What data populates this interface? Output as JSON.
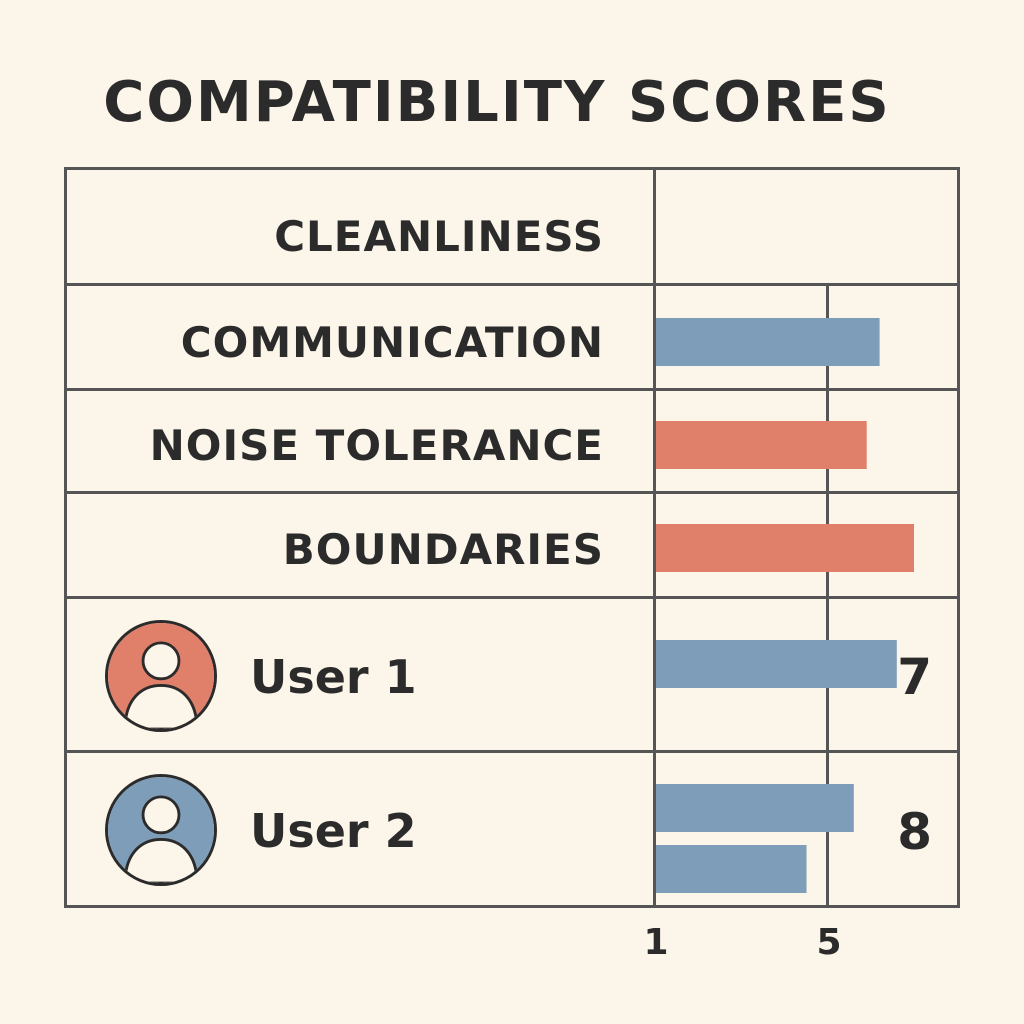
{
  "chart_data": {
    "type": "bar",
    "title": "COMPATIBILITY SCORES",
    "categories": [
      "CLEANLINESS",
      "COMMUNICATION",
      "NOISE TOLERANCE",
      "BOUNDARIES",
      "User 1",
      "User 2"
    ],
    "series": [
      {
        "values": [
          null,
          6.2,
          5.9,
          7.0,
          6.6,
          5.6
        ]
      },
      {
        "values": [
          null,
          null,
          null,
          null,
          null,
          4.5
        ]
      }
    ],
    "bar_colors": [
      "#e0806a",
      "#7e9db9",
      "#e0806a",
      "#e0806a",
      "#7e9db9",
      "#7e9db9"
    ],
    "scores": {
      "user1": "7",
      "user2": "8"
    },
    "x_ticks": [
      "1",
      "5"
    ],
    "xlim": [
      1,
      7.5
    ],
    "grid": true,
    "legend": "none"
  },
  "users": [
    {
      "label": "User 1",
      "avatar_color": "#e0806a",
      "icon": "user-avatar-icon"
    },
    {
      "label": "User 2",
      "avatar_color": "#7e9db9",
      "icon": "user-avatar-icon"
    }
  ]
}
